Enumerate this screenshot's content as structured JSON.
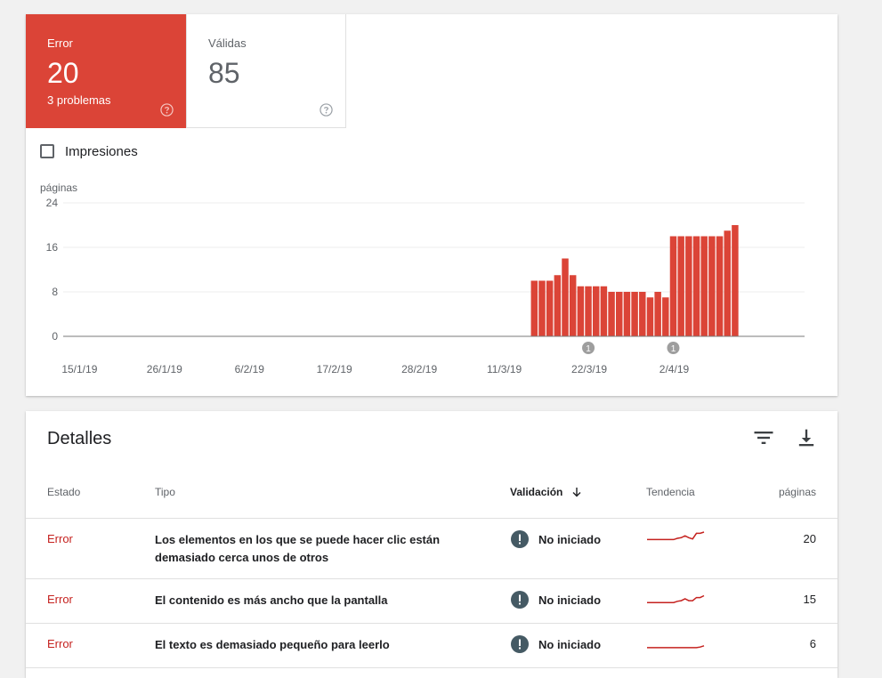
{
  "summary": {
    "error": {
      "label": "Error",
      "value": "20",
      "sub": "3 problemas"
    },
    "valid": {
      "label": "Válidas",
      "value": "85"
    },
    "impressions_label": "Impresiones",
    "impressions_checked": false
  },
  "colors": {
    "error": "#db4437",
    "error_text": "#c5221f",
    "bar": "#db4437",
    "icon_dark": "#455a64"
  },
  "chart_data": {
    "type": "bar",
    "ylabel": "páginas",
    "yticks": [
      0,
      8,
      16,
      24
    ],
    "ylim": [
      0,
      24
    ],
    "x_tick_labels": [
      "15/1/19",
      "26/1/19",
      "6/2/19",
      "17/2/19",
      "28/2/19",
      "11/3/19",
      "22/3/19",
      "2/4/19"
    ],
    "x_tick_dates": [
      "2019-01-15",
      "2019-01-26",
      "2019-02-06",
      "2019-02-17",
      "2019-02-28",
      "2019-03-11",
      "2019-03-22",
      "2019-04-02"
    ],
    "x_range": [
      "2019-01-13",
      "2019-04-19"
    ],
    "series": [
      {
        "dates": [
          "2019-03-15",
          "2019-03-16",
          "2019-03-17",
          "2019-03-18",
          "2019-03-19",
          "2019-03-20",
          "2019-03-21",
          "2019-03-22",
          "2019-03-23",
          "2019-03-24",
          "2019-03-25",
          "2019-03-26",
          "2019-03-27",
          "2019-03-28",
          "2019-03-29",
          "2019-03-30",
          "2019-03-31",
          "2019-04-01",
          "2019-04-02",
          "2019-04-03",
          "2019-04-04",
          "2019-04-05",
          "2019-04-06",
          "2019-04-07",
          "2019-04-08",
          "2019-04-09",
          "2019-04-10"
        ],
        "values": [
          10,
          10,
          10,
          11,
          14,
          11,
          9,
          9,
          9,
          9,
          8,
          8,
          8,
          8,
          8,
          7,
          8,
          7,
          18,
          18,
          18,
          18,
          18,
          18,
          18,
          19,
          20
        ]
      }
    ],
    "annotations": [
      {
        "date": "2019-03-22",
        "label": "1"
      },
      {
        "date": "2019-04-02",
        "label": "1"
      }
    ]
  },
  "details": {
    "title": "Detalles",
    "headers": {
      "status": "Estado",
      "type": "Tipo",
      "validation": "Validación",
      "trend": "Tendencia",
      "pages": "páginas"
    },
    "rows": [
      {
        "status": "Error",
        "type": "Los elementos en los que se puede hacer clic están demasiado cerca unos de otros",
        "validation": "No iniciado",
        "trend": [
          8,
          8,
          8,
          8,
          8,
          8,
          8,
          8,
          10,
          11,
          14,
          11,
          9,
          18,
          18,
          20
        ],
        "pages": "20"
      },
      {
        "status": "Error",
        "type": "El contenido es más ancho que la pantalla",
        "validation": "No iniciado",
        "trend": [
          4,
          4,
          4,
          4,
          4,
          4,
          4,
          4,
          6,
          7,
          10,
          7,
          7,
          12,
          12,
          15
        ],
        "pages": "15"
      },
      {
        "status": "Error",
        "type": "El texto es demasiado pequeño para leerlo",
        "validation": "No iniciado",
        "trend": [
          3,
          3,
          3,
          3,
          3,
          3,
          3,
          3,
          3,
          3,
          3,
          3,
          3,
          3,
          4,
          6
        ],
        "pages": "6"
      }
    ]
  }
}
